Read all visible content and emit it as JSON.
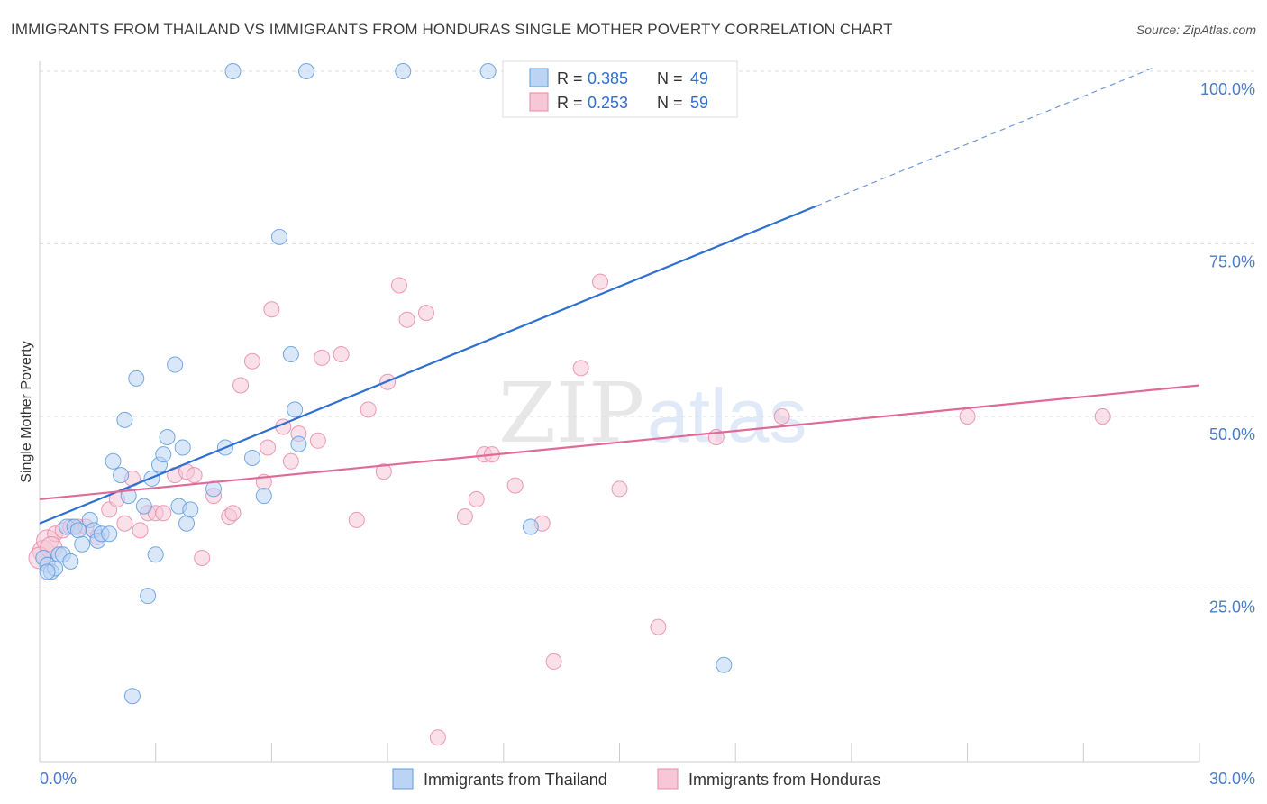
{
  "chart_data": {
    "type": "scatter",
    "title": "IMMIGRANTS FROM THAILAND VS IMMIGRANTS FROM HONDURAS SINGLE MOTHER POVERTY CORRELATION CHART",
    "source": "Source: ZipAtlas.com",
    "xlabel": "",
    "ylabel": "Single Mother Poverty",
    "xlim": [
      0,
      30
    ],
    "ylim": [
      0,
      100
    ],
    "x_tick_labels": [
      "0.0%",
      "30.0%"
    ],
    "y_ticks": [
      25,
      50,
      75,
      100
    ],
    "y_tick_labels": [
      "25.0%",
      "50.0%",
      "75.0%",
      "100.0%"
    ],
    "watermark": "ZIPatlas",
    "colors": {
      "thailand": "#5b9be0",
      "thailand_fill": "#bcd4f4",
      "thailand_line": "#2e6fd1",
      "honduras": "#e888a8",
      "honduras_fill": "#f6c7d6",
      "honduras_line": "#e06a96"
    },
    "legend": {
      "items": [
        {
          "r_label": "R =",
          "r": "0.385",
          "n_label": "N =",
          "n": "49"
        },
        {
          "r_label": "R =",
          "r": "0.253",
          "n_label": "N =",
          "n": "59"
        }
      ]
    },
    "series": [
      {
        "name": "Immigrants from Thailand",
        "trend": {
          "x0": 0,
          "y0": 34.5,
          "x1": 20.1,
          "y1": 80.5,
          "dash_to_x": 28.8,
          "dash_to_y": 100.5
        },
        "points": [
          [
            0.1,
            29.5
          ],
          [
            0.2,
            28.5
          ],
          [
            0.3,
            27.5
          ],
          [
            0.4,
            28.0
          ],
          [
            0.5,
            30.0
          ],
          [
            0.6,
            30.0
          ],
          [
            0.7,
            34.0
          ],
          [
            0.8,
            29.0
          ],
          [
            0.9,
            34.0
          ],
          [
            1.0,
            33.5
          ],
          [
            1.1,
            31.5
          ],
          [
            1.3,
            35.0
          ],
          [
            1.4,
            33.5
          ],
          [
            1.5,
            32.0
          ],
          [
            1.6,
            33.0
          ],
          [
            1.8,
            33.0
          ],
          [
            1.9,
            43.5
          ],
          [
            2.1,
            41.5
          ],
          [
            2.2,
            49.5
          ],
          [
            2.3,
            38.5
          ],
          [
            2.5,
            55.5
          ],
          [
            2.7,
            37.0
          ],
          [
            2.8,
            24.0
          ],
          [
            2.9,
            41.0
          ],
          [
            3.0,
            30.0
          ],
          [
            3.1,
            43.0
          ],
          [
            3.2,
            44.5
          ],
          [
            3.3,
            47.0
          ],
          [
            3.5,
            57.5
          ],
          [
            3.6,
            37.0
          ],
          [
            3.7,
            45.5
          ],
          [
            3.8,
            34.5
          ],
          [
            3.9,
            36.5
          ],
          [
            4.5,
            39.5
          ],
          [
            4.8,
            45.5
          ],
          [
            5.5,
            44.0
          ],
          [
            5.8,
            38.5
          ],
          [
            6.2,
            76.0
          ],
          [
            6.5,
            59.0
          ],
          [
            6.6,
            51.0
          ],
          [
            6.7,
            46.0
          ],
          [
            2.4,
            9.5
          ],
          [
            12.7,
            34.0
          ],
          [
            17.7,
            14.0
          ],
          [
            5.0,
            100
          ],
          [
            6.9,
            100
          ],
          [
            9.4,
            100
          ],
          [
            11.6,
            100
          ],
          [
            0.2,
            27.5
          ]
        ]
      },
      {
        "name": "Immigrants from Honduras",
        "trend": {
          "x0": 0,
          "y0": 38.0,
          "x1": 30,
          "y1": 54.5
        },
        "points": [
          [
            0.1,
            30.5
          ],
          [
            0.2,
            32.0
          ],
          [
            0.4,
            33.0
          ],
          [
            0.6,
            33.5
          ],
          [
            0.8,
            34.0
          ],
          [
            1.0,
            34.0
          ],
          [
            1.2,
            34.0
          ],
          [
            1.5,
            32.5
          ],
          [
            1.8,
            36.5
          ],
          [
            2.0,
            38.0
          ],
          [
            2.2,
            34.5
          ],
          [
            2.4,
            41.0
          ],
          [
            2.6,
            33.5
          ],
          [
            2.8,
            36.0
          ],
          [
            3.0,
            36.0
          ],
          [
            3.2,
            36.0
          ],
          [
            3.5,
            41.5
          ],
          [
            3.8,
            42.0
          ],
          [
            4.0,
            41.5
          ],
          [
            4.2,
            29.5
          ],
          [
            4.5,
            38.5
          ],
          [
            4.9,
            35.5
          ],
          [
            5.0,
            36.0
          ],
          [
            5.2,
            54.5
          ],
          [
            5.5,
            58.0
          ],
          [
            5.8,
            40.5
          ],
          [
            5.9,
            45.5
          ],
          [
            6.0,
            65.5
          ],
          [
            6.3,
            48.5
          ],
          [
            6.5,
            43.5
          ],
          [
            6.7,
            47.5
          ],
          [
            7.2,
            46.5
          ],
          [
            7.3,
            58.5
          ],
          [
            7.8,
            59.0
          ],
          [
            8.2,
            35.0
          ],
          [
            8.5,
            51.0
          ],
          [
            8.9,
            42.0
          ],
          [
            9.0,
            55.0
          ],
          [
            9.3,
            69.0
          ],
          [
            9.5,
            64.0
          ],
          [
            10.0,
            65.0
          ],
          [
            11.0,
            35.5
          ],
          [
            11.3,
            38.0
          ],
          [
            11.5,
            44.5
          ],
          [
            11.7,
            44.5
          ],
          [
            12.3,
            40.0
          ],
          [
            13.0,
            34.5
          ],
          [
            13.3,
            14.5
          ],
          [
            14.0,
            57.0
          ],
          [
            14.5,
            69.5
          ],
          [
            15.0,
            39.5
          ],
          [
            16.0,
            19.5
          ],
          [
            17.5,
            47.0
          ],
          [
            19.2,
            50.0
          ],
          [
            24.0,
            50.0
          ],
          [
            27.5,
            50.0
          ],
          [
            10.3,
            3.5
          ],
          [
            0.0,
            29.5
          ],
          [
            0.3,
            31.0
          ]
        ]
      }
    ],
    "bottom_legend": [
      "Immigrants from Thailand",
      "Immigrants from Honduras"
    ]
  }
}
